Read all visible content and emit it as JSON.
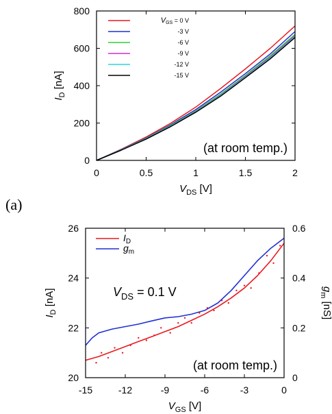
{
  "chart_data": [
    {
      "type": "line",
      "panel_label": "(a)",
      "annotation": "(at room temp.)",
      "xlabel": {
        "main": "V",
        "sub": "DS",
        "unit": " [V]"
      },
      "ylabel": {
        "main": "I",
        "sub": "D",
        "unit": " [nA]"
      },
      "xlim": [
        0,
        2
      ],
      "ylim": [
        0,
        800
      ],
      "xticks": [
        "0",
        "0.5",
        "1",
        "1.5",
        "2"
      ],
      "xtick_values": [
        0,
        0.5,
        1,
        1.5,
        2
      ],
      "yticks": [
        "0",
        "200",
        "400",
        "600",
        "800"
      ],
      "ytick_values": [
        0,
        200,
        400,
        600,
        800
      ],
      "legend_placement": "top-left",
      "legend_prefix": {
        "main": "V",
        "sub": "GS"
      },
      "x": [
        0,
        0.25,
        0.5,
        0.75,
        1.0,
        1.25,
        1.5,
        1.75,
        2.0
      ],
      "series": [
        {
          "name": "= 0 V",
          "color": "#e8191f",
          "values": [
            0,
            60,
            125,
            200,
            285,
            385,
            490,
            600,
            720
          ]
        },
        {
          "name": "-3 V",
          "color": "#1f2fd6",
          "values": [
            0,
            58,
            120,
            192,
            272,
            365,
            465,
            570,
            690
          ]
        },
        {
          "name": "-6 V",
          "color": "#2bd12b",
          "values": [
            0,
            57,
            118,
            188,
            265,
            355,
            455,
            560,
            675
          ]
        },
        {
          "name": "-9 V",
          "color": "#d12bd1",
          "values": [
            0,
            56,
            116,
            185,
            262,
            350,
            450,
            553,
            668
          ]
        },
        {
          "name": "-12 V",
          "color": "#2bd6d6",
          "values": [
            0,
            56,
            115,
            184,
            260,
            347,
            446,
            548,
            662
          ]
        },
        {
          "name": "-15 V",
          "color": "#000000",
          "values": [
            0,
            55,
            114,
            182,
            258,
            344,
            443,
            544,
            658
          ]
        }
      ]
    },
    {
      "type": "line",
      "annotation": "(at room temp.)",
      "vds_note": {
        "main": "V",
        "sub": "DS",
        "text": " = 0.1 V"
      },
      "xlabel": {
        "main": "V",
        "sub": "GS",
        "unit": " [V]"
      },
      "ylabel": {
        "main": "I",
        "sub": "D",
        "unit": " [nA]"
      },
      "y2label": {
        "main": "g",
        "sub": "m",
        "unit": " [nS]"
      },
      "xlim": [
        -15,
        0
      ],
      "ylim": [
        20,
        26
      ],
      "y2lim": [
        0,
        0.6
      ],
      "xticks": [
        "-15",
        "-12",
        "-9",
        "-6",
        "-3",
        "0"
      ],
      "xtick_values": [
        -15,
        -12,
        -9,
        -6,
        -3,
        0
      ],
      "yticks": [
        "20",
        "22",
        "24",
        "26"
      ],
      "ytick_values": [
        20,
        22,
        24,
        26
      ],
      "y2ticks": [
        "0",
        "0.2",
        "0.4",
        "0.6"
      ],
      "y2tick_values": [
        0,
        0.2,
        0.4,
        0.6
      ],
      "legend_placement": "top-left",
      "series": [
        {
          "name": "I",
          "name_sub": "D",
          "color": "#e8191f",
          "axis": "left",
          "x": [
            -15,
            -14,
            -13,
            -12,
            -11,
            -10,
            -9,
            -8,
            -7,
            -6,
            -5,
            -4,
            -3,
            -2,
            -1,
            0
          ],
          "values": [
            20.7,
            20.85,
            21.05,
            21.25,
            21.45,
            21.65,
            21.85,
            22.05,
            22.3,
            22.55,
            22.85,
            23.2,
            23.6,
            24.1,
            24.7,
            25.4
          ]
        },
        {
          "name": "g",
          "name_sub": "m",
          "color": "#1f2fd6",
          "axis": "right",
          "x": [
            -15,
            -14.5,
            -14,
            -13,
            -12,
            -11,
            -10,
            -9,
            -8,
            -7,
            -6,
            -5,
            -4,
            -3,
            -2,
            -1,
            0
          ],
          "values": [
            0.13,
            0.16,
            0.18,
            0.195,
            0.205,
            0.215,
            0.228,
            0.24,
            0.245,
            0.255,
            0.27,
            0.3,
            0.35,
            0.41,
            0.47,
            0.52,
            0.56
          ]
        },
        {
          "name": "",
          "color": "#e8191f",
          "axis": "left",
          "style": "dots",
          "x": [
            -14.2,
            -13.8,
            -13.3,
            -12.8,
            -12.2,
            -11.6,
            -11.0,
            -10.4,
            -9.8,
            -9.3,
            -8.6,
            -8.0,
            -7.5,
            -7.0,
            -6.4,
            -5.8,
            -5.3,
            -4.7,
            -4.2,
            -3.6,
            -3.0,
            -2.5,
            -1.9,
            -1.3,
            -0.8,
            -0.3
          ],
          "values": [
            20.6,
            21.0,
            20.8,
            21.2,
            21.0,
            21.3,
            21.6,
            21.5,
            21.7,
            22.0,
            21.8,
            22.2,
            22.4,
            22.2,
            22.6,
            22.8,
            22.7,
            23.1,
            23.0,
            23.5,
            23.7,
            23.6,
            24.2,
            24.9,
            24.6,
            25.3
          ]
        }
      ]
    }
  ]
}
